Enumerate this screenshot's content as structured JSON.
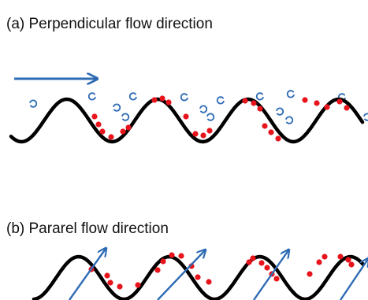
{
  "panels": [
    {
      "id": "a",
      "title": "(a) Perpendicular flow direction"
    },
    {
      "id": "b",
      "title": "(b) Pararel flow direction"
    }
  ],
  "colors": {
    "surface": "#000000",
    "particles": "#e8141c",
    "flow": "#2e6bb5",
    "text": "#111111"
  },
  "icons": {
    "flow_arrow": "right-arrow-icon",
    "eddy": "eddy-curl-icon",
    "diagonal_flow": "diagonal-arrow-icon"
  }
}
